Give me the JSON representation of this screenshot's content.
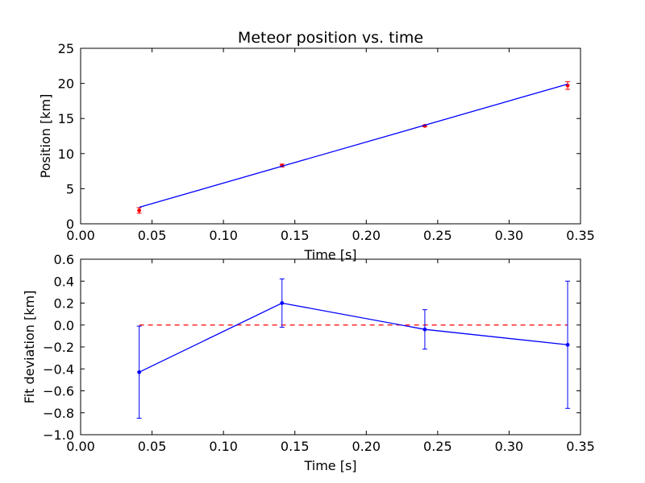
{
  "chart_data": [
    {
      "type": "scatter",
      "title": "Meteor position vs. time",
      "xlabel": "Time [s]",
      "ylabel": "Position [km]",
      "xlim": [
        0.0,
        0.35
      ],
      "ylim": [
        0,
        25
      ],
      "xticks": [
        0.0,
        0.05,
        0.1,
        0.15,
        0.2,
        0.25,
        0.3,
        0.35
      ],
      "xtick_labels": [
        "0.00",
        "0.05",
        "0.10",
        "0.15",
        "0.20",
        "0.25",
        "0.30",
        "0.35"
      ],
      "yticks": [
        0,
        5,
        10,
        15,
        20,
        25
      ],
      "ytick_labels": [
        "0",
        "5",
        "10",
        "15",
        "20",
        "25"
      ],
      "grid": false,
      "series": [
        {
          "kind": "errorbar-points",
          "color": "#ff0000",
          "x": [
            0.041,
            0.141,
            0.241,
            0.341
          ],
          "y": [
            1.9,
            8.3,
            13.95,
            19.7
          ],
          "yerr": [
            0.4,
            0.2,
            0.12,
            0.55
          ]
        },
        {
          "kind": "fit-line",
          "color": "#0000ff",
          "x": [
            0.041,
            0.341
          ],
          "y": [
            2.35,
            19.9
          ]
        }
      ]
    },
    {
      "type": "line",
      "title": "",
      "xlabel": "Time [s]",
      "ylabel": "Fit deviation [km]",
      "xlim": [
        0.0,
        0.35
      ],
      "ylim": [
        -1.0,
        0.6
      ],
      "xticks": [
        0.0,
        0.05,
        0.1,
        0.15,
        0.2,
        0.25,
        0.3,
        0.35
      ],
      "xtick_labels": [
        "0.00",
        "0.05",
        "0.10",
        "0.15",
        "0.20",
        "0.25",
        "0.30",
        "0.35"
      ],
      "yticks": [
        -1.0,
        -0.8,
        -0.6,
        -0.4,
        -0.2,
        0.0,
        0.2,
        0.4,
        0.6
      ],
      "ytick_labels": [
        "−1.0",
        "−0.8",
        "−0.6",
        "−0.4",
        "−0.2",
        "0.0",
        "0.2",
        "0.4",
        "0.6"
      ],
      "grid": false,
      "series": [
        {
          "kind": "errorbar-line",
          "color": "#0000ff",
          "x": [
            0.041,
            0.141,
            0.241,
            0.341
          ],
          "y": [
            -0.43,
            0.2,
            -0.04,
            -0.18
          ],
          "yerr": [
            0.42,
            0.22,
            0.18,
            0.58
          ]
        }
      ],
      "reference_line": {
        "y": 0.0,
        "color": "#ff0000",
        "style": "dashed"
      }
    }
  ]
}
